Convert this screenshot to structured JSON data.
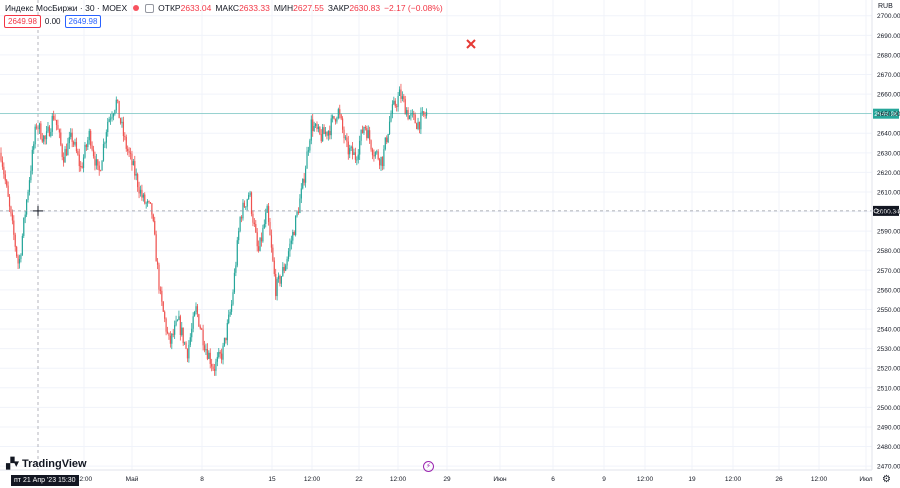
{
  "header": {
    "symbol": "Индекс МосБиржи · 30 · MOEX",
    "open_label": "ОТКР",
    "open_value": "2633.04",
    "high_label": "МАКС",
    "high_value": "2633.33",
    "low_label": "МИН",
    "low_value": "2627.55",
    "close_label": "ЗАКР",
    "close_value": "2630.83",
    "change": "−2.17 (−0.08%)"
  },
  "trade": {
    "sell_price": "2649.98",
    "spread": "0.00",
    "buy_price": "2649.98"
  },
  "currency": "RUB",
  "crosshair_time_label": "пт 21 Апр '23   15:30",
  "logo_text": "TradingView",
  "icons": {
    "settings": "gear-icon",
    "event": "bolt-icon",
    "marker": "x-mark-icon",
    "crosshair": "crosshair-icon"
  },
  "colors": {
    "up": "#26a69a",
    "down": "#ef5350",
    "last_price": "#26a69a",
    "crosshair_label": "#131722"
  },
  "chart_data": {
    "type": "candlestick",
    "ylim": [
      2467,
      2706
    ],
    "y_ticks": [
      2470,
      2480,
      2490,
      2500,
      2510,
      2520,
      2530,
      2540,
      2550,
      2560,
      2570,
      2580,
      2590,
      2600,
      2610,
      2620,
      2630,
      2640,
      2650,
      2660,
      2670,
      2680,
      2690,
      2700
    ],
    "x_ticks": [
      "12:00",
      "Май",
      "8",
      "15",
      "12:00",
      "22",
      "12:00",
      "29",
      "Июн",
      "6",
      "9",
      "12:00",
      "19",
      "12:00",
      "26",
      "12:00",
      "Июл"
    ],
    "last_price": "2649.98",
    "crosshair_price": "2600.34",
    "grid": true,
    "trajectory": [
      2630,
      2600,
      2572,
      2610,
      2645,
      2636,
      2650,
      2628,
      2638,
      2622,
      2640,
      2618,
      2646,
      2656,
      2635,
      2621,
      2606,
      2600,
      2555,
      2532,
      2544,
      2528,
      2550,
      2532,
      2520,
      2528,
      2552,
      2598,
      2610,
      2578,
      2600,
      2560,
      2572,
      2590,
      2612,
      2645,
      2638,
      2642,
      2652,
      2632,
      2628,
      2645,
      2631,
      2626,
      2650,
      2660,
      2649,
      2645,
      2650
    ]
  }
}
